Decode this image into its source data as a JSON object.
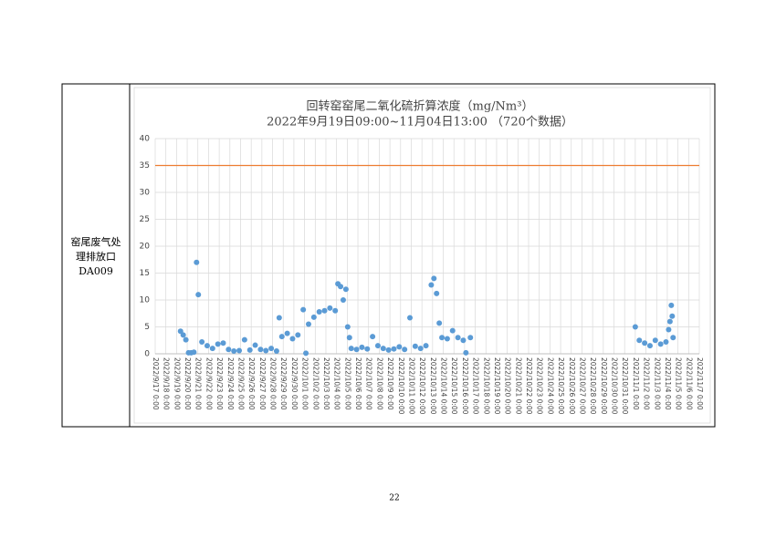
{
  "row_label": [
    "窑尾废气处",
    "理排放口",
    "DA009"
  ],
  "page_number": "22",
  "chart_data": {
    "type": "scatter",
    "title": "回转窑窑尾二氧化硫折算浓度（mg/Nm³）",
    "subtitle": "2022年9月19日09:00~11月04日13:00 （720个数据）",
    "color": "#5b9bd5",
    "grid": true,
    "limit_line": {
      "value": 35,
      "color": "#ed7d31"
    },
    "ylim": [
      0,
      40
    ],
    "yticks": [
      0,
      5,
      10,
      15,
      20,
      25,
      30,
      35,
      40
    ],
    "xlim": [
      "2022/9/17 0:00",
      "2022/11/7 0:00"
    ],
    "xticks": [
      "2022/9/17 0:00",
      "2022/9/18 0:00",
      "2022/9/19 0:00",
      "2022/9/20 0:00",
      "2022/9/21 0:00",
      "2022/9/22 0:00",
      "2022/9/23 0:00",
      "2022/9/24 0:00",
      "2022/9/25 0:00",
      "2022/9/26 0:00",
      "2022/9/27 0:00",
      "2022/9/28 0:00",
      "2022/9/29 0:00",
      "2022/9/30 0:00",
      "2022/10/1 0:00",
      "2022/10/2 0:00",
      "2022/10/3 0:00",
      "2022/10/4 0:00",
      "2022/10/5 0:00",
      "2022/10/6 0:00",
      "2022/10/7 0:00",
      "2022/10/8 0:00",
      "2022/10/9 0:00",
      "2022/10/10 0:00",
      "2022/10/11 0:00",
      "2022/10/12 0:00",
      "2022/10/13 0:00",
      "2022/10/14 0:00",
      "2022/10/15 0:00",
      "2022/10/16 0:00",
      "2022/10/17 0:00",
      "2022/10/18 0:00",
      "2022/10/19 0:00",
      "2022/10/20 0:00",
      "2022/10/21 0:00",
      "2022/10/22 0:00",
      "2022/10/23 0:00",
      "2022/10/24 0:00",
      "2022/10/25 0:00",
      "2022/10/26 0:00",
      "2022/10/27 0:00",
      "2022/10/28 0:00",
      "2022/10/29 0:00",
      "2022/10/30 0:00",
      "2022/10/31 0:00",
      "2022/11/1 0:00",
      "2022/11/2 0:00",
      "2022/11/3 0:00",
      "2022/11/4 0:00",
      "2022/11/5 0:00",
      "2022/11/6 0:00",
      "2022/11/7 0:00"
    ],
    "x": [
      "2022/9/19 9:00",
      "2022/9/19 15:00",
      "2022/9/19 21:00",
      "2022/9/20 3:00",
      "2022/9/20 9:00",
      "2022/9/20 15:00",
      "2022/9/20 21:00",
      "2022/9/21 1:00",
      "2022/9/21 9:00",
      "2022/9/21 21:00",
      "2022/9/22 9:00",
      "2022/9/22 21:00",
      "2022/9/23 9:00",
      "2022/9/23 21:00",
      "2022/9/24 9:00",
      "2022/9/24 21:00",
      "2022/9/25 9:00",
      "2022/9/25 21:00",
      "2022/9/26 9:00",
      "2022/9/26 21:00",
      "2022/9/27 9:00",
      "2022/9/27 21:00",
      "2022/9/28 9:00",
      "2022/9/28 15:00",
      "2022/9/28 21:00",
      "2022/9/29 9:00",
      "2022/9/29 21:00",
      "2022/9/30 9:00",
      "2022/9/30 21:00",
      "2022/10/1 3:00",
      "2022/10/1 9:00",
      "2022/10/1 21:00",
      "2022/10/2 9:00",
      "2022/10/2 21:00",
      "2022/10/3 9:00",
      "2022/10/3 21:00",
      "2022/10/4 3:00",
      "2022/10/4 9:00",
      "2022/10/4 15:00",
      "2022/10/4 21:00",
      "2022/10/5 1:00",
      "2022/10/5 5:00",
      "2022/10/5 9:00",
      "2022/10/5 21:00",
      "2022/10/6 9:00",
      "2022/10/6 21:00",
      "2022/10/7 9:00",
      "2022/10/7 21:00",
      "2022/10/8 9:00",
      "2022/10/8 21:00",
      "2022/10/9 9:00",
      "2022/10/9 21:00",
      "2022/10/10 9:00",
      "2022/10/10 21:00",
      "2022/10/11 9:00",
      "2022/10/11 21:00",
      "2022/10/12 9:00",
      "2022/10/12 21:00",
      "2022/10/13 3:00",
      "2022/10/13 9:00",
      "2022/10/13 15:00",
      "2022/10/13 21:00",
      "2022/10/14 9:00",
      "2022/10/14 21:00",
      "2022/10/15 9:00",
      "2022/10/15 21:00",
      "2022/10/16 3:00",
      "2022/10/16 13:00",
      "2022/11/1 0:00",
      "2022/11/1 9:00",
      "2022/11/1 21:00",
      "2022/11/2 9:00",
      "2022/11/2 21:00",
      "2022/11/3 9:00",
      "2022/11/3 21:00",
      "2022/11/4 3:00",
      "2022/11/4 6:00",
      "2022/11/4 9:00",
      "2022/11/4 11:00",
      "2022/11/4 13:00"
    ],
    "values": [
      4.2,
      3.5,
      2.6,
      0.2,
      0.2,
      0.3,
      17,
      11,
      2.2,
      1.5,
      1,
      1.8,
      2,
      0.8,
      0.5,
      0.6,
      2.6,
      0.7,
      1.6,
      0.8,
      0.6,
      1.0,
      0.5,
      6.7,
      3.2,
      3.8,
      2.8,
      3.5,
      8.2,
      0.1,
      5.5,
      6.8,
      7.8,
      8,
      8.5,
      8,
      13,
      12.5,
      10,
      12,
      5,
      3,
      1,
      0.8,
      1.2,
      0.9,
      3.2,
      1.5,
      1,
      0.7,
      0.9,
      1.3,
      0.8,
      6.7,
      1.4,
      1,
      1.5,
      12.8,
      14,
      11.2,
      5.7,
      3,
      2.8,
      4.3,
      3,
      2.5,
      0.2,
      3,
      5,
      2.5,
      2,
      1.5,
      2.5,
      1.8,
      2.2,
      4.5,
      6,
      9,
      7,
      3
    ]
  }
}
